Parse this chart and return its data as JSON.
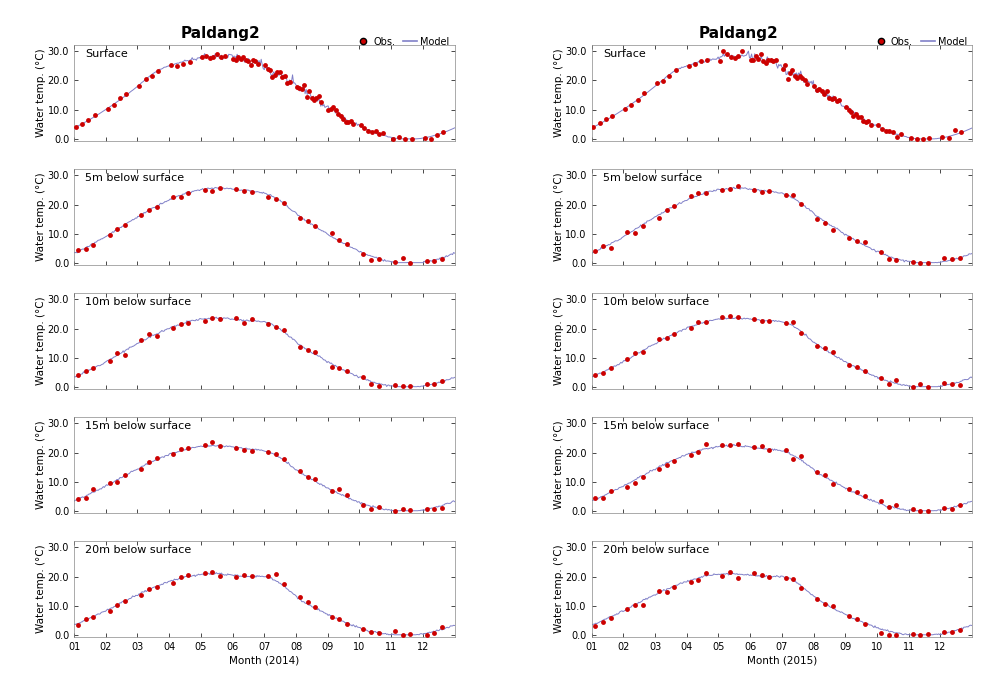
{
  "title": "Paldang2",
  "legend_obs": "Obs.",
  "legend_model": "Model",
  "ylabel": "Water temp. (°C)",
  "xlabel_2014": "Month (2014)",
  "xlabel_2015": "Month (2015)",
  "ylim": [
    -0.5,
    32
  ],
  "yticks": [
    0.0,
    10.0,
    20.0,
    30.0
  ],
  "xtick_labels": [
    "01",
    "02",
    "03",
    "04",
    "05",
    "06",
    "07",
    "08",
    "09",
    "10",
    "11",
    "12"
  ],
  "depths": [
    "Surface",
    "5m below surface",
    "10m below surface",
    "15m below surface",
    "20m below surface"
  ],
  "model_color": "#8080c8",
  "obs_color": "#cc0000",
  "model_linewidth": 0.7,
  "obs_markersize": 3.5,
  "background_color": "#ffffff",
  "axes_facecolor": "#ffffff",
  "title_fontsize": 11,
  "label_fontsize": 7.5,
  "tick_fontsize": 7,
  "depth_label_fontsize": 8
}
